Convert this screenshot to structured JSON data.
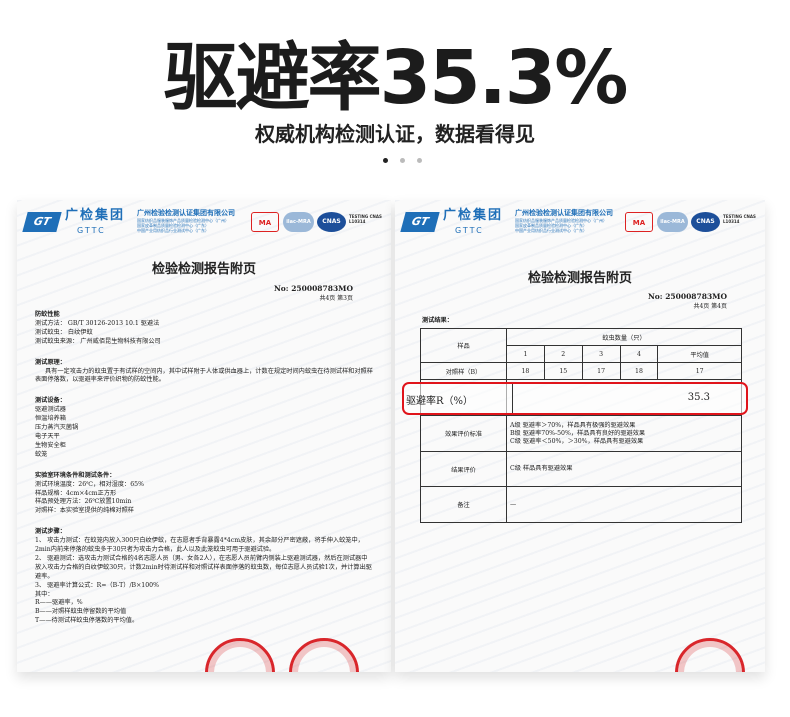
{
  "hero": {
    "title": "驱避率35.3%",
    "subtitle": "权威机构检测认证，数据看得见",
    "dots": 3,
    "active_dot": 0
  },
  "header": {
    "logo_text": "GT",
    "brand": "广检集团",
    "brand_en": "GTTC",
    "org": "广州检验检测认证集团有限公司",
    "org_sub": [
      "国家纺织品服装服饰产品质量检验检测中心（广州）",
      "国家皮革制品质量检验检测中心（广东）",
      "中国产业用纺织品行业测试中心（广东）"
    ],
    "cert_ma": "MA",
    "cert_ilac": "ilac-MRA",
    "cert_cnas": "CNAS",
    "cnas_no": "TESTING CNAS L10314"
  },
  "left_doc": {
    "title": "检验检测报告附页",
    "no": "No: 250008783MO",
    "pages": "共4页  第3页",
    "sections": [
      {
        "heading": "防蚊性能",
        "lines": [
          "测试方法： GB/T 30126-2013  10.1 驱避法",
          "测试蚊虫： 白纹伊蚊",
          "测试蚊虫来源： 广州威佰昆生物科技有限公司"
        ]
      },
      {
        "heading": "测试原理：",
        "lines": [
          "具有一定攻击力的蚊虫置于有试样的空间内，其中试样附于人体或供血器上，计数在规定时间内蚊虫在待测试样和对照样表面停落数，以驱避率来评价织物的防蚊性能。"
        ]
      },
      {
        "heading": "测试设备：",
        "lines": [
          "驱避测试器",
          "恒温培养箱",
          "压力蒸汽灭菌锅",
          "电子天平",
          "生物安全柜",
          "蚊笼"
        ]
      },
      {
        "heading": "实验室环境条件和测试条件：",
        "lines": [
          "测试环境温度：26℃，相对湿度：65%",
          "样品规格：4cm×4cm正方形",
          "样品预处理方法：26℃放置10min",
          "对照样：本实验室提供的纯棉对照样"
        ]
      },
      {
        "heading": "测试步骤：",
        "lines": [
          "1、 攻击力测试：在蚊笼内放入300只白纹伊蚊，在志愿者手背暴露4*4cm皮肤，其余部分严密遮蔽，将手伸入蚊笼中，2min内前来停落的蚊虫多于30只者为攻击力合格，此人以及此笼蚊虫可用于驱避试验。",
          "2、 驱避测试：选攻击力测试合格的4名志愿人员（男、女各2人），在志愿人员前臂内侧装上驱避测试器，然后在测试器中放入攻击力合格的白纹伊蚊30只，计数2min时待测试样和对照试样表面停落的蚊虫数，每位志愿人员试验1次，并计算出驱避率。",
          "3、 驱避率计算公式：R=（B-T）/B×100%",
          "其中：",
          "R——驱避率，%",
          "B——对照样蚊虫停留数的平均值",
          "T——待测试样蚊虫停落数的平均值。"
        ]
      }
    ]
  },
  "right_doc": {
    "title": "检验检测报告附页",
    "no": "No: 250008783MO",
    "pages": "共4页  第4页",
    "results_heading": "测试结果：",
    "table": {
      "sample_label": "样品",
      "count_header": "蚊虫数量（只）",
      "cols": [
        "1",
        "2",
        "3",
        "4",
        "平均值"
      ],
      "control_label": "对照样（B）",
      "control_values": [
        "18",
        "15",
        "17",
        "18",
        "17"
      ],
      "rate_label": "驱避率R（%）",
      "rate_value": "35.3",
      "criteria_label": "效果评价标准",
      "criteria": [
        "A级 驱避率＞70%，样品具有极强的驱避效果",
        "B级 驱避率70%-50%，样品具有良好的驱避效果",
        "C级 驱避率＜50%，＞30%，样品具有驱避效果"
      ],
      "result_label": "结果评价",
      "result": "C级 样品具有驱避效果",
      "remark_label": "备注",
      "remark": "—"
    },
    "highlight_color": "#e0141b"
  }
}
